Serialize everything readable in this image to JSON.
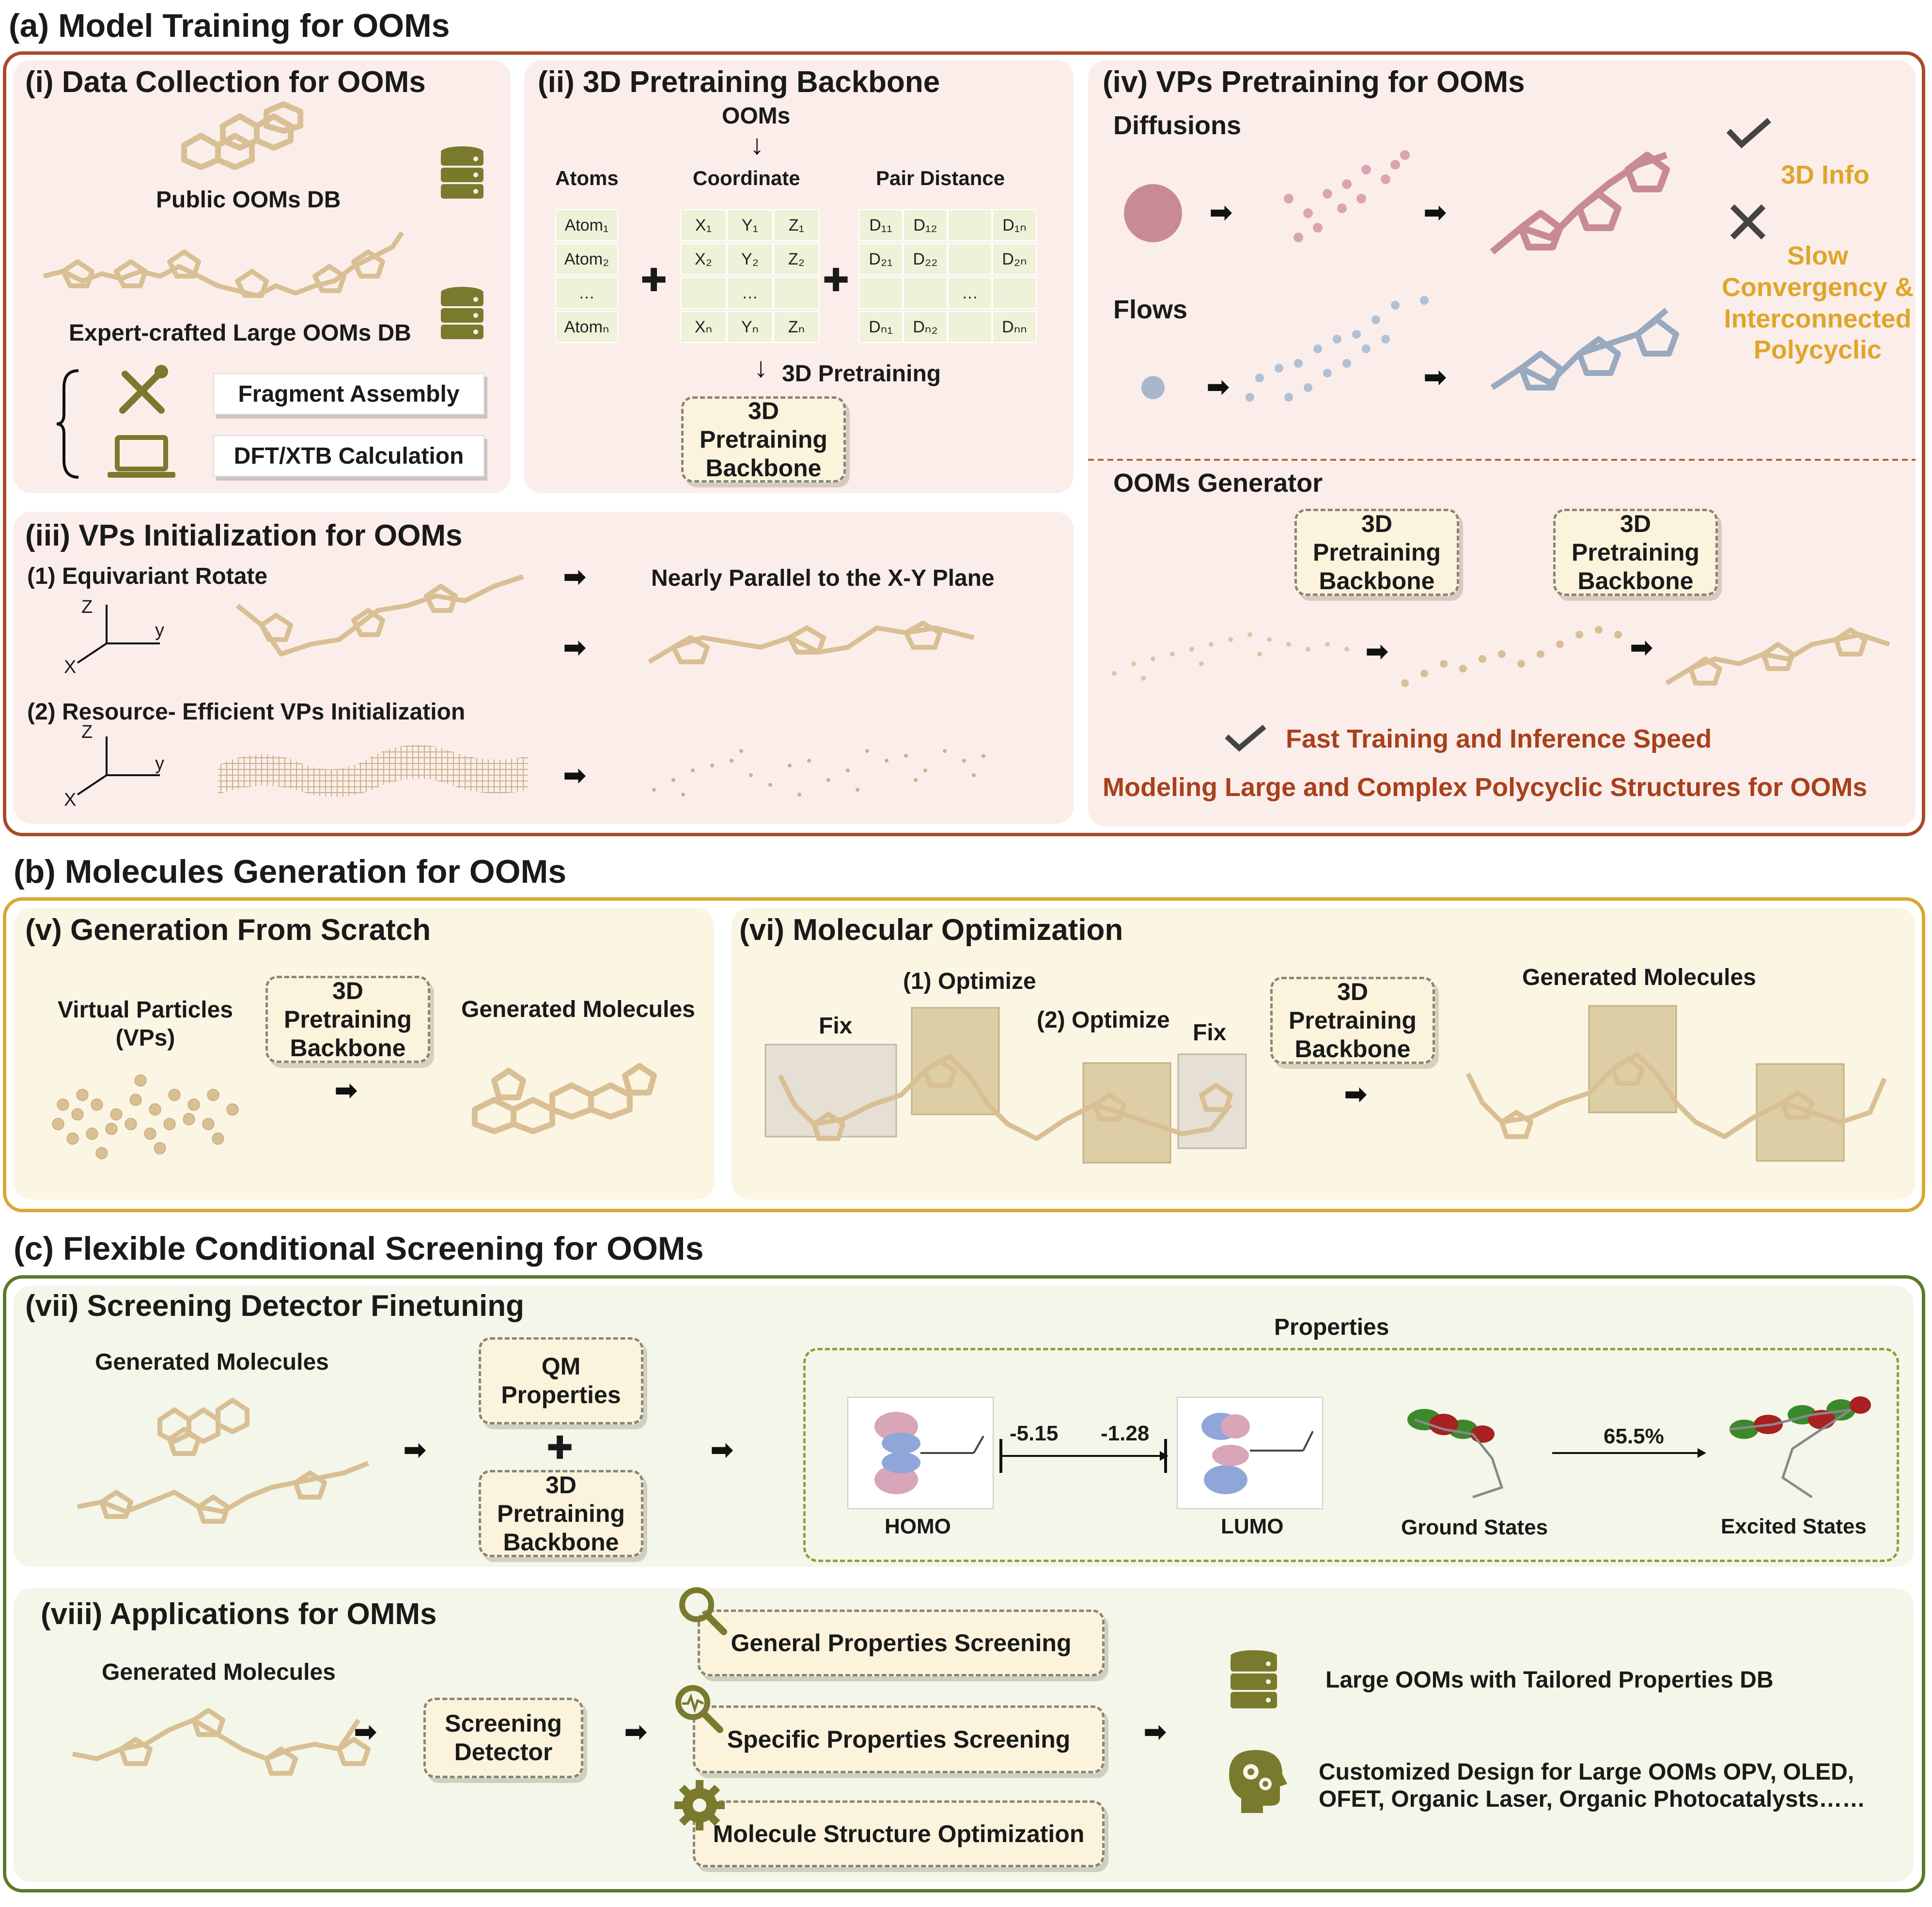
{
  "colors": {
    "brown_border": "#a84a2a",
    "gold_border": "#d8a736",
    "green_border": "#5a7a2a",
    "gold_text": "#e0a52a",
    "red_text": "#a8401c",
    "db_icon": "#7a7a2e",
    "molecule": "#d9bf94"
  },
  "section_a": {
    "title": "(a) Model Training for OOMs",
    "p1": {
      "title": "(i) Data Collection for OOMs",
      "public_db": "Public OOMs DB",
      "expert_db": "Expert-crafted Large OOMs DB",
      "fragment": "Fragment Assembly",
      "dft": "DFT/XTB Calculation",
      "icons": [
        "database-icon",
        "tools-icon",
        "laptop-icon"
      ]
    },
    "p2": {
      "title": "(ii) 3D Pretraining Backbone",
      "ooms": "OOMs",
      "atoms": "Atoms",
      "coordinate": "Coordinate",
      "pair_distance": "Pair Distance",
      "atom_cells": [
        "Atom₁",
        "Atom₂",
        "…",
        "Atomₙ"
      ],
      "coord_rows": [
        [
          "X₁",
          "Y₁",
          "Z₁"
        ],
        [
          "X₂",
          "Y₂",
          "Z₂"
        ],
        [
          "",
          "…",
          ""
        ],
        [
          "Xₙ",
          "Yₙ",
          "Zₙ"
        ]
      ],
      "dist_rows": [
        [
          "D₁₁",
          "D₁₂",
          "",
          "D₁ₙ"
        ],
        [
          "D₂₁",
          "D₂₂",
          "",
          "D₂ₙ"
        ],
        [
          "",
          "",
          "…",
          ""
        ],
        [
          "Dₙ₁",
          "Dₙ₂",
          "",
          "Dₙₙ"
        ]
      ],
      "plus": "✚",
      "pretraining": "3D Pretraining",
      "backbone": "3D Pretraining Backbone"
    },
    "p3": {
      "title": "(iii) VPs Initialization for OOMs",
      "step1": "(1) Equivariant Rotate",
      "parallel": "Nearly Parallel to the X-Y Plane",
      "step2": "(2) Resource- Efficient VPs Initialization",
      "axis_z": "Z",
      "axis_y": "y",
      "axis_x": "X"
    },
    "p4": {
      "title": "(iv) VPs Pretraining for OOMs",
      "diffusions": "Diffusions",
      "flows": "Flows",
      "info": "3D  Info",
      "slow": "Slow Convergency & Interconnected Polycyclic",
      "generator": "OOMs Generator",
      "backbone1": "3D Pretraining Backbone",
      "backbone2": "3D Pretraining Backbone",
      "fast": "Fast Training and Inference Speed",
      "modeling": "Modeling Large and Complex Polycyclic Structures for OOMs"
    }
  },
  "section_b": {
    "title": "(b) Molecules Generation for OOMs",
    "p5": {
      "title": "(v) Generation From Scratch",
      "vps": "Virtual Particles (VPs)",
      "backbone": "3D Pretraining Backbone",
      "generated": "Generated Molecules"
    },
    "p6": {
      "title": "(vi) Molecular Optimization",
      "optimize1": "(1) Optimize",
      "optimize2": "(2) Optimize",
      "fix1": "Fix",
      "fix2": "Fix",
      "backbone": "3D Pretraining Backbone",
      "generated": "Generated Molecules"
    }
  },
  "section_c": {
    "title": "(c) Flexible Conditional Screening for OOMs",
    "p7": {
      "title": "(vii) Screening Detector Finetuning",
      "generated": "Generated Molecules",
      "qm": "QM Properties",
      "backbone": "3D Pretraining Backbone",
      "properties": "Properties",
      "homo": "HOMO",
      "lumo": "LUMO",
      "homo_val": "-5.15",
      "lumo_val": "-1.28",
      "ground": "Ground States",
      "excited": "Excited States",
      "pct": "65.5%"
    },
    "p8": {
      "title": "(viii) Applications for OMMs",
      "generated": "Generated Molecules",
      "detector": "Screening Detector",
      "general": "General Properties Screening",
      "specific": "Specific Properties Screening",
      "structure": "Molecule Structure Optimization",
      "db": "Large OOMs with Tailored Properties DB",
      "custom1": "Customized Design for Large OOMs OPV, OLED,",
      "custom2": "OFET, Organic Laser, Organic Photocatalysts……"
    }
  }
}
